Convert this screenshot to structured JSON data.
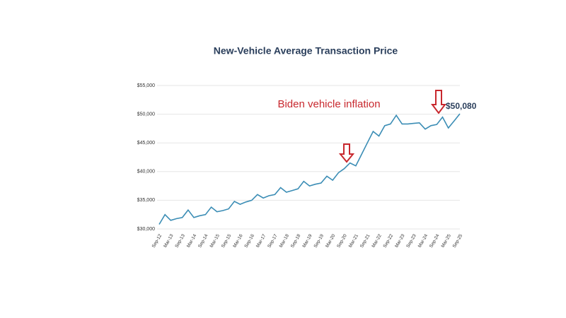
{
  "chart_data": {
    "type": "line",
    "title": "New-Vehicle Average Transaction Price",
    "annotation": "Biden vehicle inflation",
    "categories": [
      "Sep-12",
      null,
      "Mar-13",
      null,
      "Sep-13",
      null,
      "Mar-14",
      null,
      "Sep-14",
      null,
      "Mar-15",
      null,
      "Sep-15",
      null,
      "Mar-16",
      null,
      "Sep-16",
      null,
      "Mar-17",
      null,
      "Sep-17",
      null,
      "Mar-18",
      null,
      "Sep-18",
      null,
      "Mar-19",
      null,
      "Sep-19",
      null,
      "Mar-20",
      null,
      "Sep-20",
      null,
      "Mar-21",
      null,
      "Sep-21",
      null,
      "Mar-22",
      null,
      "Sep-22",
      null,
      "Mar-23",
      null,
      "Sep-23",
      null,
      "Mar-24",
      null,
      "Sep-24",
      null,
      "Mar-25",
      null,
      "Sep-25"
    ],
    "series": [
      {
        "name": null,
        "color": "#3b8db5",
        "values": [
          30800,
          32500,
          31500,
          31800,
          32000,
          33300,
          32000,
          32300,
          32500,
          33800,
          33000,
          33200,
          33500,
          34800,
          34300,
          34700,
          35000,
          36000,
          35400,
          35800,
          36000,
          37200,
          36400,
          36700,
          37000,
          38300,
          37500,
          37800,
          38000,
          39200,
          38500,
          39800,
          40500,
          41500,
          41000,
          43000,
          45000,
          47000,
          46200,
          48000,
          48300,
          49800,
          48300,
          48300,
          48400,
          48500,
          47400,
          48000,
          48200,
          49500,
          47600,
          48800,
          50080
        ],
        "value_labels": [
          null,
          null,
          null,
          null,
          null,
          null,
          null,
          null,
          null,
          null,
          null,
          null,
          null,
          null,
          null,
          null,
          null,
          null,
          null,
          null,
          null,
          null,
          null,
          null,
          null,
          null,
          null,
          null,
          null,
          null,
          null,
          null,
          null,
          null,
          null,
          null,
          null,
          null,
          null,
          null,
          null,
          null,
          null,
          null,
          null,
          null,
          null,
          null,
          null,
          null,
          null,
          null,
          "$50,080"
        ]
      }
    ],
    "ylim": [
      30000,
      55000
    ],
    "yticks": [
      {
        "value": 30000,
        "label": "$30,000"
      },
      {
        "value": 35000,
        "label": "$35,000"
      },
      {
        "value": 40000,
        "label": "$40,000"
      },
      {
        "value": 45000,
        "label": "$45,000"
      },
      {
        "value": 50000,
        "label": "$50,000"
      },
      {
        "value": 55000,
        "label": "$55,000"
      }
    ],
    "grid": true
  }
}
